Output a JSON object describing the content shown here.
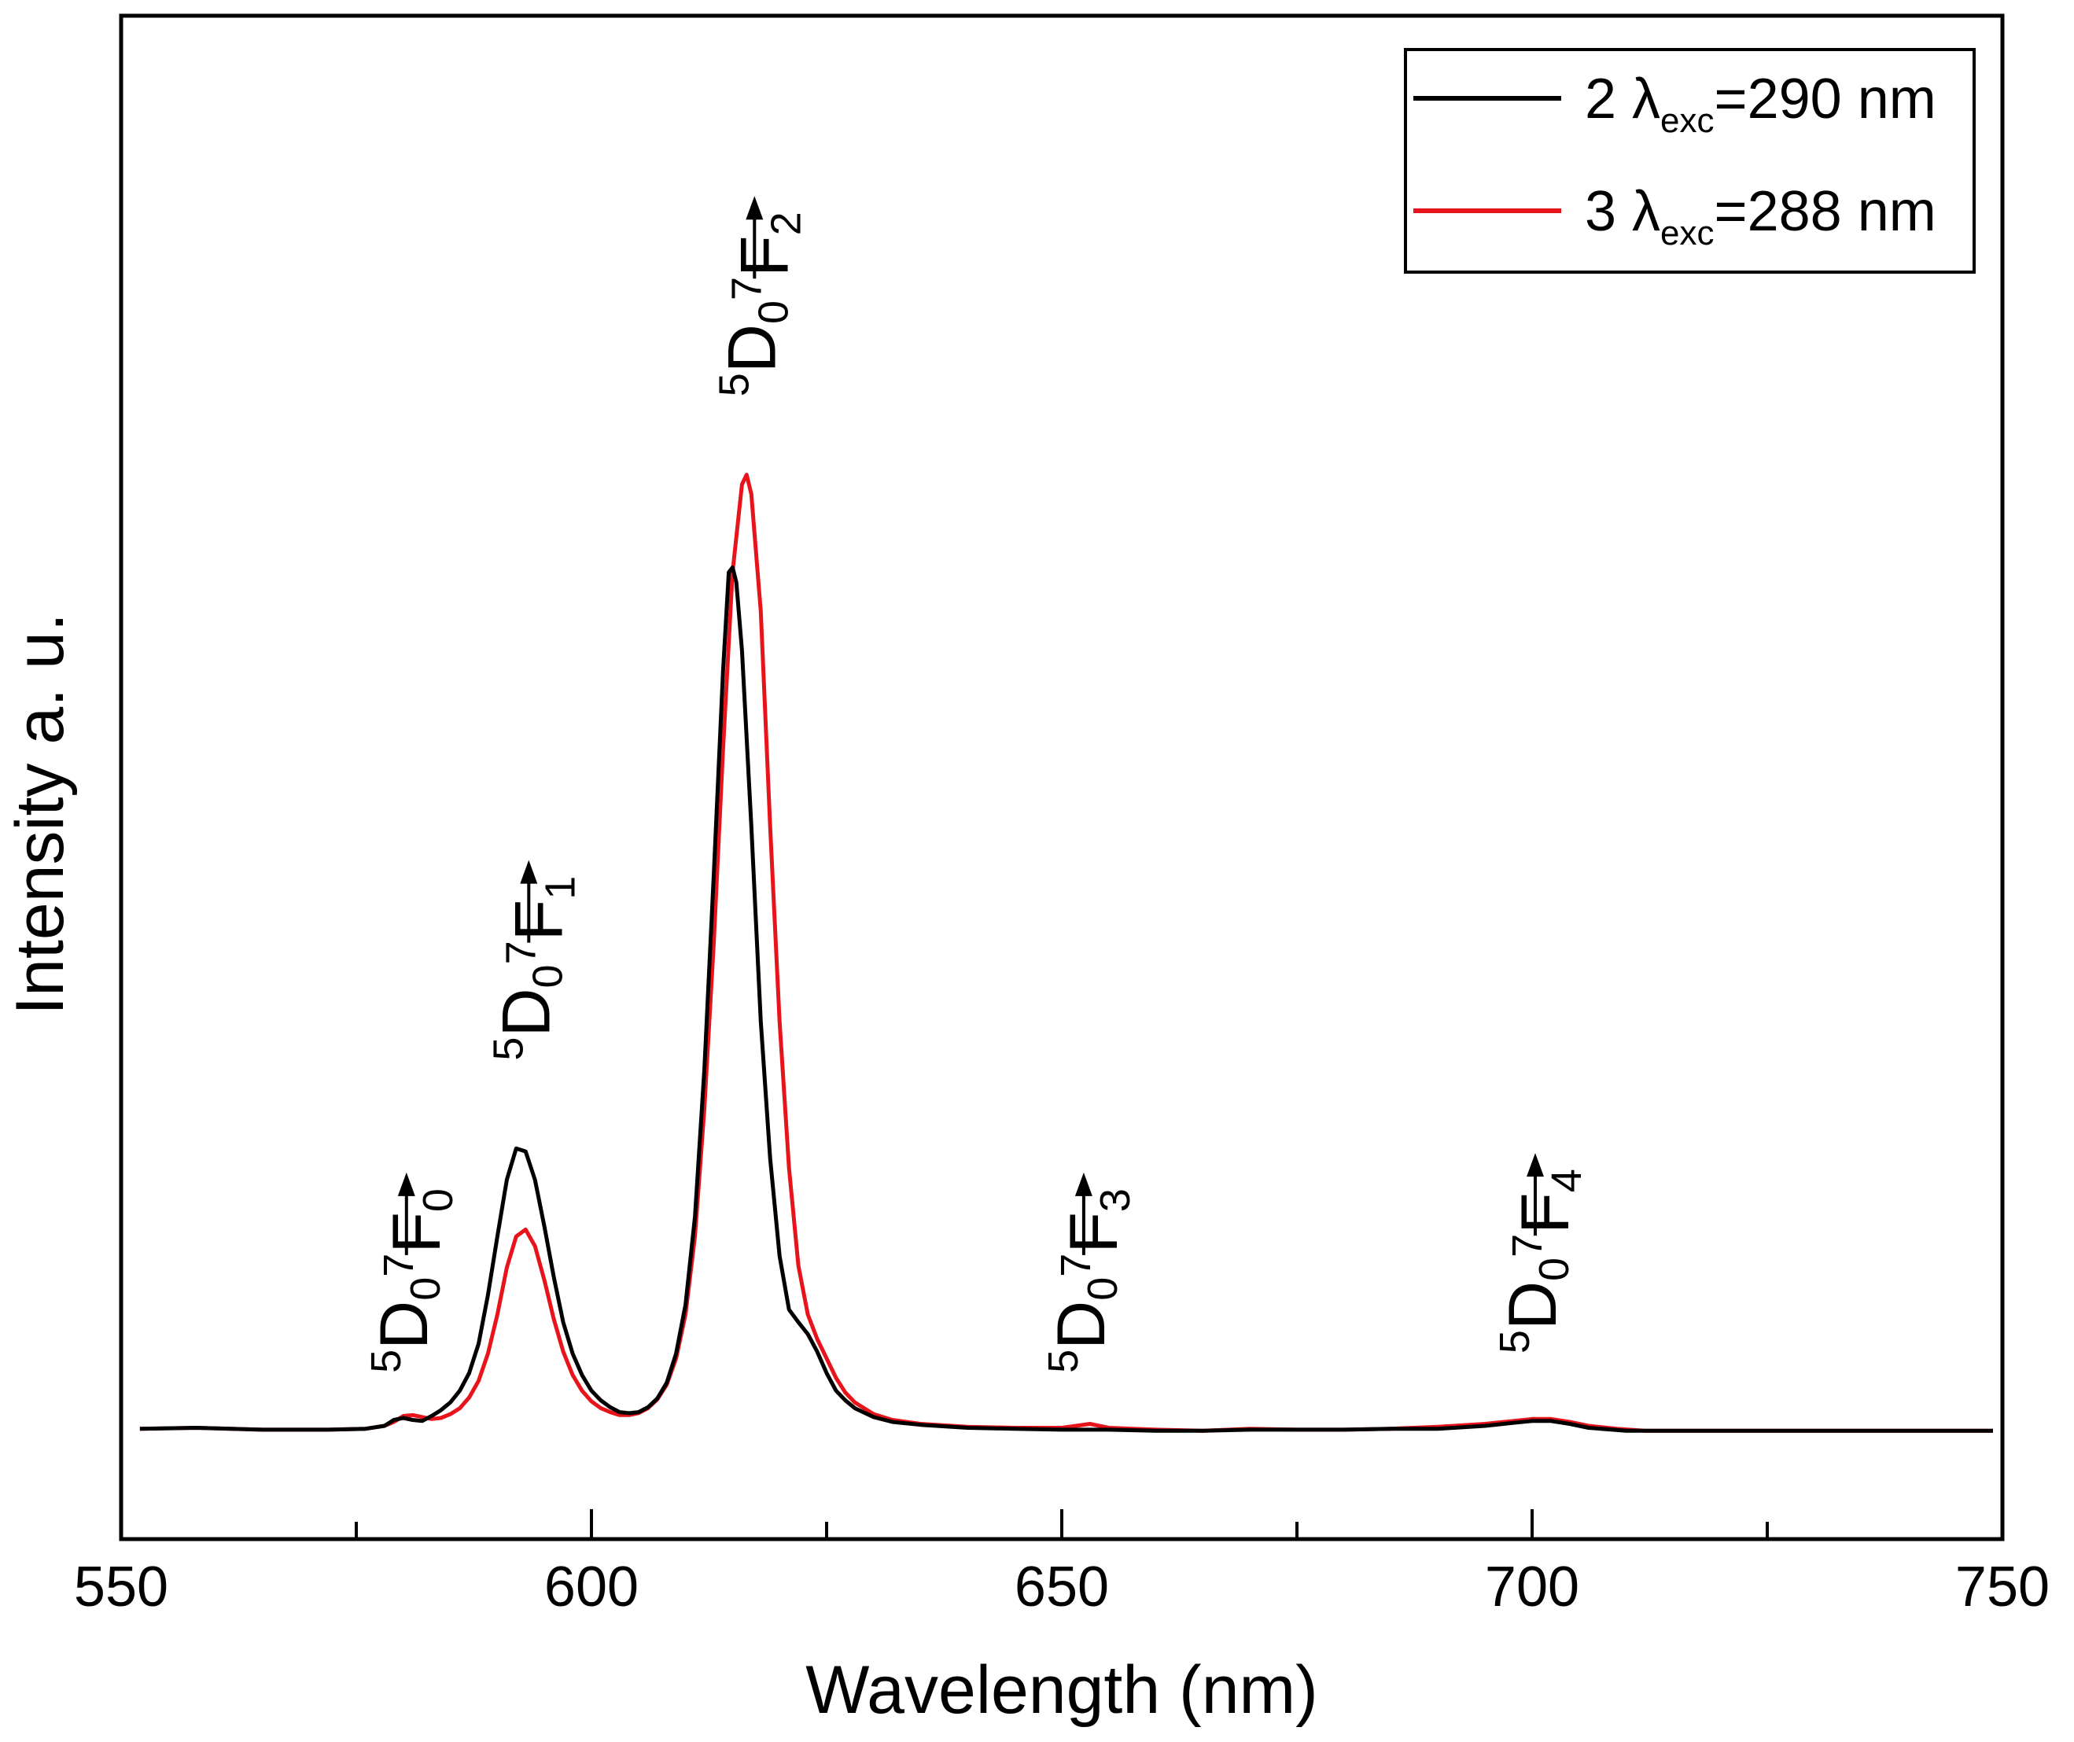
{
  "chart_data": {
    "type": "line",
    "title": "",
    "xlabel": "Wavelength (nm)",
    "ylabel": "Intensity a. u.",
    "xlim": [
      550,
      750
    ],
    "ylim": [
      -0.11,
      1.45
    ],
    "x_major_ticks": [
      550,
      600,
      650,
      700,
      750
    ],
    "x_tick_labels": [
      "550",
      "600",
      "650",
      "700",
      "750"
    ],
    "x_minor_ticks": [
      575,
      625,
      675,
      725
    ],
    "grid": false,
    "legend_position": "top-right",
    "legend": [
      {
        "number": "2",
        "lambda": "λ",
        "sub": "exc",
        "value": "=290 nm",
        "color": "#000000"
      },
      {
        "number": "3",
        "lambda": "λ",
        "sub": "exc",
        "value": "=288 nm",
        "color": "#e8141b"
      }
    ],
    "series": [
      {
        "name": "2 λexc=290 nm",
        "color": "#000000",
        "x": [
          552,
          558,
          565,
          572,
          576,
          578,
          579,
          580,
          581,
          582,
          583,
          584,
          585,
          586,
          587,
          588,
          589,
          590,
          591,
          592,
          593,
          594,
          595,
          596,
          597,
          598,
          599,
          600,
          601,
          602,
          603,
          604,
          605,
          606,
          607,
          608,
          609,
          610,
          611,
          612,
          613,
          614,
          614.6,
          615,
          615.4,
          616,
          617,
          618,
          619,
          620,
          621,
          622,
          623,
          624,
          625,
          626,
          627,
          628,
          630,
          632,
          635,
          640,
          645,
          650,
          655,
          660,
          665,
          670,
          675,
          680,
          685,
          690,
          695,
          698,
          700,
          702,
          704,
          706,
          710,
          720,
          730,
          740,
          749
        ],
        "y": [
          0.003,
          0.004,
          0.002,
          0.002,
          0.003,
          0.006,
          0.012,
          0.014,
          0.012,
          0.011,
          0.016,
          0.022,
          0.03,
          0.042,
          0.06,
          0.09,
          0.14,
          0.2,
          0.258,
          0.29,
          0.287,
          0.258,
          0.21,
          0.158,
          0.112,
          0.08,
          0.058,
          0.042,
          0.032,
          0.025,
          0.02,
          0.019,
          0.02,
          0.025,
          0.034,
          0.05,
          0.08,
          0.13,
          0.22,
          0.37,
          0.57,
          0.78,
          0.88,
          0.885,
          0.87,
          0.8,
          0.62,
          0.42,
          0.28,
          0.18,
          0.125,
          0.112,
          0.1,
          0.082,
          0.06,
          0.042,
          0.032,
          0.024,
          0.015,
          0.01,
          0.007,
          0.004,
          0.003,
          0.002,
          0.002,
          0.001,
          0.001,
          0.002,
          0.002,
          0.002,
          0.003,
          0.003,
          0.006,
          0.009,
          0.011,
          0.011,
          0.008,
          0.004,
          0.001,
          0.001,
          0.001,
          0.001,
          0.001
        ]
      },
      {
        "name": "3 λexc=288 nm",
        "color": "#e8141b",
        "x": [
          552,
          558,
          565,
          572,
          576,
          578,
          579,
          580,
          581,
          582,
          583,
          584,
          585,
          586,
          587,
          588,
          589,
          590,
          591,
          592,
          593,
          594,
          595,
          596,
          597,
          598,
          599,
          600,
          601,
          602,
          603,
          604,
          605,
          606,
          607,
          608,
          609,
          610,
          611,
          612,
          613,
          614,
          615,
          616,
          616.5,
          617,
          618,
          619,
          620,
          621,
          622,
          623,
          624,
          625,
          626,
          627,
          628,
          630,
          632,
          635,
          640,
          645,
          650,
          653,
          655,
          660,
          665,
          670,
          675,
          680,
          685,
          690,
          695,
          698,
          700,
          702,
          704,
          706,
          709,
          712,
          720,
          730,
          740,
          749
        ],
        "y": [
          0.003,
          0.004,
          0.002,
          0.002,
          0.003,
          0.006,
          0.01,
          0.016,
          0.017,
          0.015,
          0.013,
          0.014,
          0.018,
          0.024,
          0.035,
          0.052,
          0.08,
          0.12,
          0.168,
          0.2,
          0.207,
          0.19,
          0.155,
          0.115,
          0.082,
          0.058,
          0.042,
          0.031,
          0.024,
          0.02,
          0.017,
          0.017,
          0.019,
          0.024,
          0.033,
          0.048,
          0.075,
          0.12,
          0.2,
          0.33,
          0.5,
          0.7,
          0.88,
          0.97,
          0.98,
          0.96,
          0.84,
          0.62,
          0.42,
          0.27,
          0.17,
          0.12,
          0.095,
          0.075,
          0.055,
          0.04,
          0.03,
          0.018,
          0.012,
          0.008,
          0.005,
          0.004,
          0.004,
          0.008,
          0.004,
          0.002,
          0.001,
          0.003,
          0.002,
          0.002,
          0.003,
          0.005,
          0.008,
          0.011,
          0.013,
          0.013,
          0.01,
          0.006,
          0.003,
          0.001,
          0.001,
          0.001,
          0.001,
          0.001
        ]
      }
    ],
    "annotations": [
      {
        "x": 580,
        "y_label": 0.06,
        "arrow_tip": 0.245,
        "upper": "D",
        "upper_sup": "5",
        "upper_sub": "0",
        "lower": "F",
        "lower_sup": "7",
        "lower_sub": "0"
      },
      {
        "x": 593,
        "y_label": 0.38,
        "arrow_tip": 0.555,
        "upper": "D",
        "upper_sup": "5",
        "upper_sub": "0",
        "lower": "F",
        "lower_sup": "7",
        "lower_sub": "1"
      },
      {
        "x": 617,
        "y_label": 1.06,
        "arrow_tip": 1.24,
        "upper": "D",
        "upper_sup": "5",
        "upper_sub": "0",
        "lower": "F",
        "lower_sup": "7",
        "lower_sub": "2"
      },
      {
        "x": 652,
        "y_label": 0.06,
        "arrow_tip": 0.245,
        "upper": "D",
        "upper_sup": "5",
        "upper_sub": "0",
        "lower": "F",
        "lower_sup": "7",
        "lower_sub": "3"
      },
      {
        "x": 700,
        "y_label": 0.08,
        "arrow_tip": 0.265,
        "upper": "D",
        "upper_sup": "5",
        "upper_sub": "0",
        "lower": "F",
        "lower_sup": "7",
        "lower_sub": "4"
      }
    ]
  }
}
